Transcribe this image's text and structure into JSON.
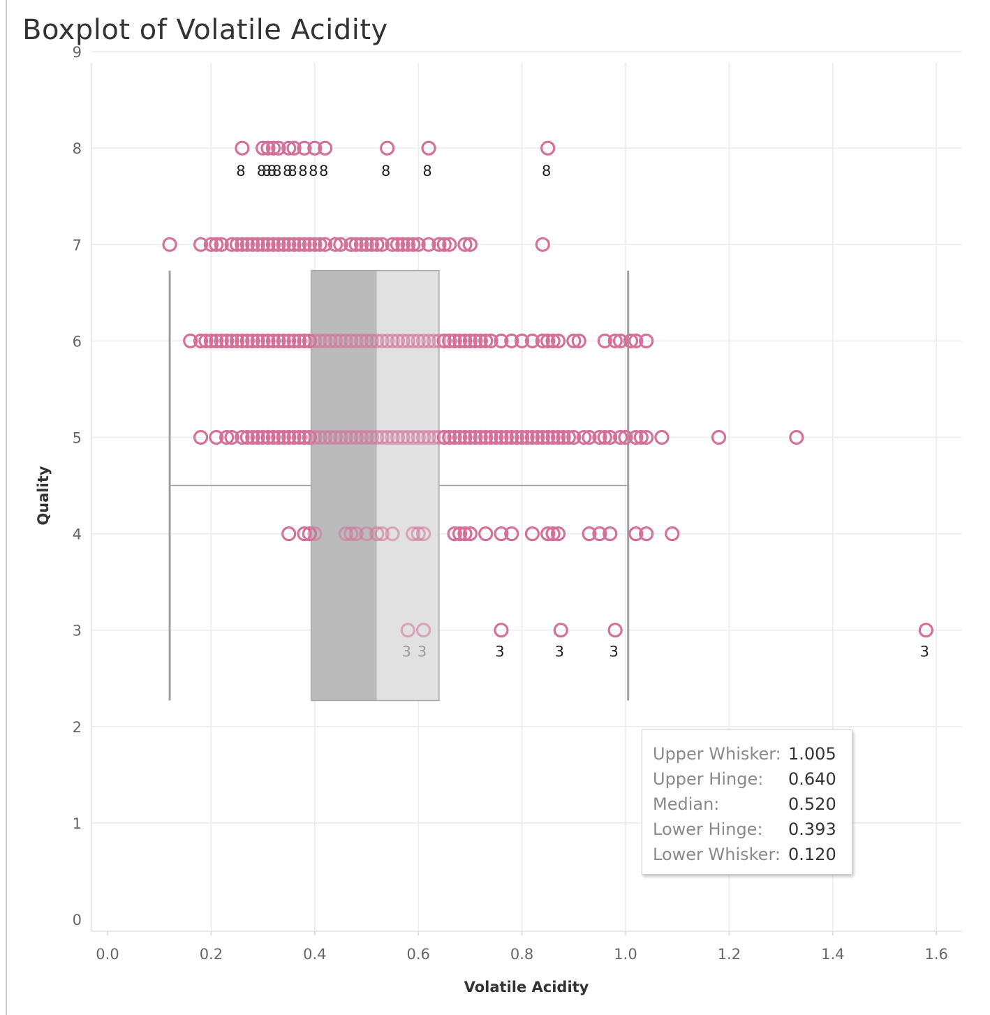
{
  "chart_data": {
    "type": "boxplot",
    "title": "Boxplot of Volatile Acidity",
    "xlabel": "Volatile Acidity",
    "ylabel": "Quality",
    "xlim": [
      -0.03,
      1.68
    ],
    "ylim": [
      -0.1,
      9.1
    ],
    "x_ticks": [
      "0.0",
      "0.2",
      "0.4",
      "0.6",
      "0.8",
      "1.0",
      "1.2",
      "1.4",
      "1.6"
    ],
    "y_ticks": [
      "0",
      "1",
      "2",
      "3",
      "4",
      "5",
      "6",
      "7",
      "8",
      "9"
    ],
    "grid": true,
    "box": {
      "lower_whisker": 0.12,
      "lower_hinge": 0.393,
      "median": 0.52,
      "upper_hinge": 0.64,
      "upper_whisker": 1.005,
      "y_range": [
        2.27,
        6.73
      ],
      "whisker_y": 4.5
    },
    "series": [
      {
        "quality": 8,
        "labeled": true,
        "values": [
          0.26,
          0.3,
          0.31,
          0.32,
          0.33,
          0.35,
          0.36,
          0.38,
          0.4,
          0.42,
          0.54,
          0.62,
          0.85
        ]
      },
      {
        "quality": 7,
        "labeled": false,
        "values": [
          0.12,
          0.18,
          0.2,
          0.21,
          0.22,
          0.24,
          0.25,
          0.26,
          0.27,
          0.28,
          0.29,
          0.3,
          0.31,
          0.32,
          0.33,
          0.34,
          0.35,
          0.36,
          0.37,
          0.38,
          0.39,
          0.4,
          0.41,
          0.42,
          0.44,
          0.45,
          0.47,
          0.48,
          0.49,
          0.5,
          0.51,
          0.52,
          0.53,
          0.55,
          0.56,
          0.57,
          0.58,
          0.59,
          0.6,
          0.62,
          0.64,
          0.65,
          0.66,
          0.69,
          0.7,
          0.84
        ]
      },
      {
        "quality": 6,
        "labeled": false,
        "values": [
          0.16,
          0.18,
          0.19,
          0.2,
          0.21,
          0.22,
          0.23,
          0.24,
          0.25,
          0.26,
          0.27,
          0.28,
          0.29,
          0.3,
          0.31,
          0.32,
          0.33,
          0.34,
          0.35,
          0.36,
          0.37,
          0.38,
          0.39,
          0.4,
          0.41,
          0.42,
          0.43,
          0.44,
          0.45,
          0.46,
          0.47,
          0.48,
          0.49,
          0.5,
          0.51,
          0.52,
          0.53,
          0.54,
          0.55,
          0.56,
          0.57,
          0.58,
          0.59,
          0.6,
          0.61,
          0.62,
          0.63,
          0.64,
          0.65,
          0.66,
          0.67,
          0.68,
          0.69,
          0.7,
          0.71,
          0.72,
          0.73,
          0.74,
          0.76,
          0.78,
          0.8,
          0.82,
          0.84,
          0.85,
          0.86,
          0.87,
          0.9,
          0.91,
          0.96,
          0.98,
          0.99,
          1.01,
          1.02,
          1.04
        ]
      },
      {
        "quality": 5,
        "labeled": false,
        "values": [
          0.18,
          0.21,
          0.23,
          0.24,
          0.26,
          0.27,
          0.28,
          0.29,
          0.3,
          0.31,
          0.32,
          0.33,
          0.34,
          0.35,
          0.36,
          0.37,
          0.38,
          0.39,
          0.4,
          0.41,
          0.42,
          0.43,
          0.44,
          0.45,
          0.46,
          0.47,
          0.48,
          0.49,
          0.5,
          0.51,
          0.52,
          0.53,
          0.54,
          0.55,
          0.56,
          0.57,
          0.58,
          0.59,
          0.6,
          0.61,
          0.62,
          0.63,
          0.64,
          0.65,
          0.66,
          0.67,
          0.68,
          0.69,
          0.7,
          0.71,
          0.72,
          0.73,
          0.74,
          0.75,
          0.76,
          0.77,
          0.78,
          0.79,
          0.8,
          0.81,
          0.82,
          0.83,
          0.84,
          0.85,
          0.86,
          0.87,
          0.88,
          0.89,
          0.9,
          0.92,
          0.93,
          0.95,
          0.96,
          0.97,
          0.99,
          1.0,
          1.02,
          1.03,
          1.04,
          1.07,
          1.18,
          1.33
        ]
      },
      {
        "quality": 4,
        "labeled": false,
        "values": [
          0.35,
          0.38,
          0.39,
          0.4,
          0.46,
          0.47,
          0.48,
          0.5,
          0.52,
          0.53,
          0.55,
          0.59,
          0.6,
          0.61,
          0.67,
          0.68,
          0.69,
          0.7,
          0.73,
          0.76,
          0.78,
          0.82,
          0.85,
          0.86,
          0.87,
          0.93,
          0.95,
          0.97,
          1.02,
          1.04,
          1.09
        ]
      },
      {
        "quality": 3,
        "labeled": true,
        "values": [
          0.58,
          0.61,
          0.76,
          0.875,
          0.98,
          1.58
        ]
      }
    ],
    "point_label_text": {
      "8": "8",
      "3": "3"
    },
    "tooltip": [
      {
        "label": "Upper Whisker:",
        "value": "1.005"
      },
      {
        "label": "Upper Hinge:",
        "value": "0.640"
      },
      {
        "label": "Median:",
        "value": "0.520"
      },
      {
        "label": "Lower Hinge:",
        "value": "0.393"
      },
      {
        "label": "Lower Whisker:",
        "value": "0.120"
      }
    ],
    "colors": {
      "point": "#d4719a",
      "box_lower": "#bbbbbb",
      "box_upper": "#e1e1e1",
      "whisker": "#a0a0a0",
      "grid": "#ececec"
    }
  }
}
